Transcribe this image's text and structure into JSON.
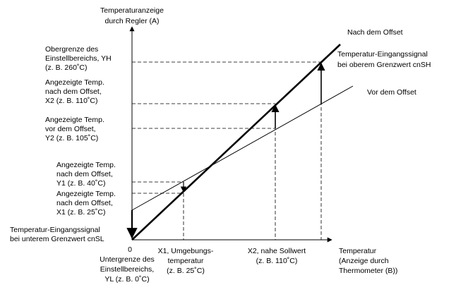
{
  "labels": [
    {
      "lines": [
        "Temperaturanzeige",
        "durch Regler (A)"
      ]
    },
    {
      "lines": [
        "Nach dem Offset"
      ]
    },
    {
      "lines": [
        "Temperatur-Eingangssignal",
        "bei oberem Grenzwert cnSH"
      ]
    },
    {
      "lines": [
        "Vor dem Offset"
      ]
    },
    {
      "lines": [
        "Obergrenze des",
        "Einstellbereichs, YH",
        "(z. B. 260˚C)"
      ]
    },
    {
      "lines": [
        "Angezeigte Temp.",
        "nach dem Offset,",
        "X2 (z. B. 110˚C)"
      ]
    },
    {
      "lines": [
        "Angezeigte Temp.",
        "vor dem Offset,",
        "Y2 (z. B. 105˚C)"
      ]
    },
    {
      "lines": [
        "Angezeigte Temp.",
        "nach dem Offset,",
        "Y1 (z. B. 40˚C)"
      ]
    },
    {
      "lines": [
        "Angezeigte Temp.",
        "nach dem Offset,",
        "X1 (z. B. 25˚C)"
      ]
    },
    {
      "lines": [
        "Temperatur-Eingangssignal",
        "bei unterem Grenzwert cnSL"
      ]
    },
    {
      "lines": [
        "0"
      ]
    },
    {
      "lines": [
        "Untergrenze des",
        "Einstellbereichs,",
        "YL (z. B. 0˚C)"
      ]
    },
    {
      "lines": [
        "X1, Umgebungs-",
        "temperatur",
        "(z. B. 25˚C)"
      ]
    },
    {
      "lines": [
        "X2, nahe Sollwert",
        "(z. B. 110˚C)"
      ]
    },
    {
      "lines": [
        "Temperatur",
        "(Anzeige durch",
        "Thermometer (B))"
      ]
    }
  ]
}
